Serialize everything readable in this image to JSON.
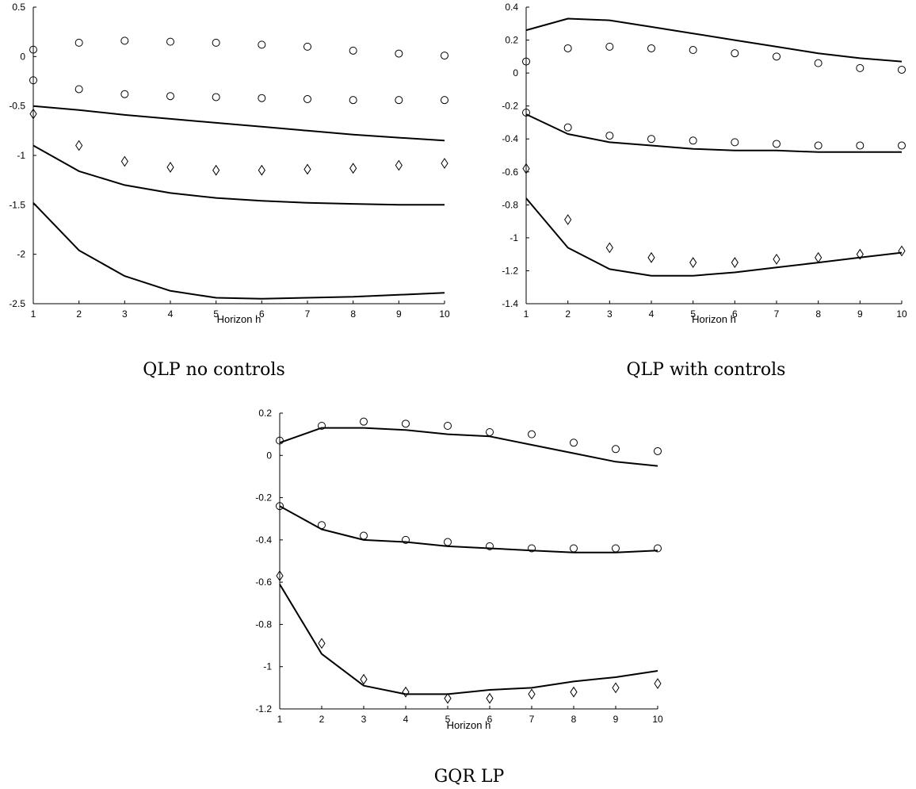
{
  "chart_data": [
    {
      "type": "line",
      "caption": "QLP no controls",
      "xlabel": "Horizon h",
      "ylabel": "",
      "x": [
        1,
        2,
        3,
        4,
        5,
        6,
        7,
        8,
        9,
        10
      ],
      "xticks": [
        "1",
        "2",
        "3",
        "4",
        "5",
        "6",
        "7",
        "8",
        "9",
        "10"
      ],
      "ylim": [
        -2.5,
        0.5
      ],
      "yticks": [
        "0.5",
        "0",
        "-0.5",
        "-1",
        "-1.5",
        "-2",
        "-2.5"
      ],
      "series": [
        {
          "style": "line",
          "values": [
            -0.5,
            -0.54,
            -0.59,
            -0.63,
            -0.67,
            -0.71,
            -0.75,
            -0.79,
            -0.82,
            -0.85
          ]
        },
        {
          "style": "line",
          "values": [
            -0.9,
            -1.16,
            -1.3,
            -1.38,
            -1.43,
            -1.46,
            -1.48,
            -1.49,
            -1.5,
            -1.5
          ]
        },
        {
          "style": "line",
          "values": [
            -1.48,
            -1.96,
            -2.22,
            -2.37,
            -2.44,
            -2.45,
            -2.44,
            -2.43,
            -2.41,
            -2.39
          ]
        },
        {
          "style": "circle",
          "values": [
            0.07,
            0.14,
            0.16,
            0.15,
            0.14,
            0.12,
            0.1,
            0.06,
            0.03,
            0.01
          ]
        },
        {
          "style": "circle",
          "values": [
            -0.24,
            -0.33,
            -0.38,
            -0.4,
            -0.41,
            -0.42,
            -0.43,
            -0.44,
            -0.44,
            -0.44
          ]
        },
        {
          "style": "diamond",
          "values": [
            -0.58,
            -0.9,
            -1.06,
            -1.12,
            -1.15,
            -1.15,
            -1.14,
            -1.13,
            -1.1,
            -1.08
          ]
        }
      ]
    },
    {
      "type": "line",
      "caption": "QLP with controls",
      "xlabel": "Horizon h",
      "ylabel": "",
      "x": [
        1,
        2,
        3,
        4,
        5,
        6,
        7,
        8,
        9,
        10
      ],
      "xticks": [
        "1",
        "2",
        "3",
        "4",
        "5",
        "6",
        "7",
        "8",
        "9",
        "10"
      ],
      "ylim": [
        -1.4,
        0.4
      ],
      "yticks": [
        "0.4",
        "0.2",
        "0",
        "-0.2",
        "-0.4",
        "-0.6",
        "-0.8",
        "-1",
        "-1.2",
        "-1.4"
      ],
      "series": [
        {
          "style": "line",
          "values": [
            0.26,
            0.33,
            0.32,
            0.28,
            0.24,
            0.2,
            0.16,
            0.12,
            0.09,
            0.07
          ]
        },
        {
          "style": "line",
          "values": [
            -0.25,
            -0.37,
            -0.42,
            -0.44,
            -0.46,
            -0.47,
            -0.47,
            -0.48,
            -0.48,
            -0.48
          ]
        },
        {
          "style": "line",
          "values": [
            -0.76,
            -1.06,
            -1.19,
            -1.23,
            -1.23,
            -1.21,
            -1.18,
            -1.15,
            -1.12,
            -1.09
          ]
        },
        {
          "style": "circle",
          "values": [
            0.07,
            0.15,
            0.16,
            0.15,
            0.14,
            0.12,
            0.1,
            0.06,
            0.03,
            0.02
          ]
        },
        {
          "style": "circle",
          "values": [
            -0.24,
            -0.33,
            -0.38,
            -0.4,
            -0.41,
            -0.42,
            -0.43,
            -0.44,
            -0.44,
            -0.44
          ]
        },
        {
          "style": "diamond",
          "values": [
            -0.58,
            -0.89,
            -1.06,
            -1.12,
            -1.15,
            -1.15,
            -1.13,
            -1.12,
            -1.1,
            -1.08
          ]
        }
      ]
    },
    {
      "type": "line",
      "caption": "GQR LP",
      "xlabel": "Horizon h",
      "ylabel": "",
      "x": [
        1,
        2,
        3,
        4,
        5,
        6,
        7,
        8,
        9,
        10
      ],
      "xticks": [
        "1",
        "2",
        "3",
        "4",
        "5",
        "6",
        "7",
        "8",
        "9",
        "10"
      ],
      "ylim": [
        -1.2,
        0.2
      ],
      "yticks": [
        "0.2",
        "0",
        "-0.2",
        "-0.4",
        "-0.6",
        "-0.8",
        "-1",
        "-1.2"
      ],
      "series": [
        {
          "style": "line",
          "values": [
            0.06,
            0.13,
            0.13,
            0.12,
            0.1,
            0.09,
            0.05,
            0.01,
            -0.03,
            -0.05
          ]
        },
        {
          "style": "line",
          "values": [
            -0.24,
            -0.35,
            -0.4,
            -0.41,
            -0.43,
            -0.44,
            -0.45,
            -0.46,
            -0.46,
            -0.45
          ]
        },
        {
          "style": "line",
          "values": [
            -0.61,
            -0.94,
            -1.09,
            -1.13,
            -1.13,
            -1.11,
            -1.1,
            -1.07,
            -1.05,
            -1.02
          ]
        },
        {
          "style": "circle",
          "values": [
            0.07,
            0.14,
            0.16,
            0.15,
            0.14,
            0.11,
            0.1,
            0.06,
            0.03,
            0.02
          ]
        },
        {
          "style": "circle",
          "values": [
            -0.24,
            -0.33,
            -0.38,
            -0.4,
            -0.41,
            -0.43,
            -0.44,
            -0.44,
            -0.44,
            -0.44
          ]
        },
        {
          "style": "diamond",
          "values": [
            -0.57,
            -0.89,
            -1.06,
            -1.12,
            -1.15,
            -1.15,
            -1.13,
            -1.12,
            -1.1,
            -1.08
          ]
        }
      ]
    }
  ]
}
